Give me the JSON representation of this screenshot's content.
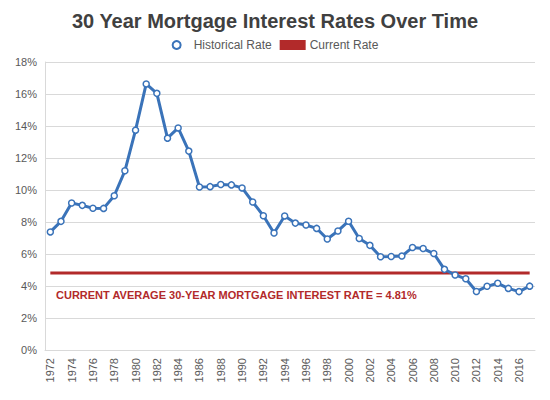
{
  "chart_data": {
    "type": "line",
    "title": "30 Year Mortgage Interest Rates Over Time",
    "categories": [
      "1972",
      null,
      "1974",
      null,
      "1976",
      null,
      "1978",
      null,
      "1980",
      null,
      "1982",
      null,
      "1984",
      null,
      "1986",
      null,
      "1988",
      null,
      "1990",
      null,
      "1992",
      null,
      "1994",
      null,
      "1996",
      null,
      "1998",
      null,
      "2000",
      null,
      "2002",
      null,
      "2004",
      null,
      "2006",
      null,
      "2008",
      null,
      "2010",
      null,
      "2012",
      null,
      "2014",
      null,
      "2016",
      null
    ],
    "series": [
      {
        "name": "Historical Rate",
        "color": "#3a73b9",
        "marker": "circle",
        "line_style": "solid",
        "values": [
          7.38,
          8.04,
          9.19,
          9.04,
          8.86,
          8.85,
          9.64,
          11.2,
          13.74,
          16.63,
          16.04,
          13.24,
          13.88,
          12.43,
          10.19,
          10.21,
          10.34,
          10.32,
          10.13,
          9.25,
          8.39,
          7.31,
          8.38,
          7.93,
          7.81,
          7.6,
          6.94,
          7.44,
          8.05,
          6.97,
          6.54,
          5.83,
          5.84,
          5.87,
          6.41,
          6.34,
          6.03,
          5.04,
          4.69,
          4.45,
          3.66,
          3.98,
          4.17,
          3.85,
          3.65,
          3.99
        ]
      },
      {
        "name": "Current Rate",
        "color": "#b22a2a",
        "marker": "none",
        "line_style": "solid",
        "values": [
          4.81,
          4.81,
          4.81,
          4.81,
          4.81,
          4.81,
          4.81,
          4.81,
          4.81,
          4.81,
          4.81,
          4.81,
          4.81,
          4.81,
          4.81,
          4.81,
          4.81,
          4.81,
          4.81,
          4.81,
          4.81,
          4.81,
          4.81,
          4.81,
          4.81,
          4.81,
          4.81,
          4.81,
          4.81,
          4.81,
          4.81,
          4.81,
          4.81,
          4.81,
          4.81,
          4.81,
          4.81,
          4.81,
          4.81,
          4.81,
          4.81,
          4.81,
          4.81,
          4.81,
          4.81,
          4.81
        ]
      }
    ],
    "annotations": [
      "CURRENT AVERAGE 30-YEAR MORTGAGE INTEREST RATE = 4.81%"
    ],
    "ylim": [
      0,
      18
    ],
    "yticks": [
      {
        "value": 0,
        "label": "0%"
      },
      {
        "value": 2,
        "label": "2%"
      },
      {
        "value": 4,
        "label": "4%"
      },
      {
        "value": 6,
        "label": "6%"
      },
      {
        "value": 8,
        "label": "8%"
      },
      {
        "value": 10,
        "label": "10%"
      },
      {
        "value": 12,
        "label": "12%"
      },
      {
        "value": 14,
        "label": "14%"
      },
      {
        "value": 16,
        "label": "16%"
      },
      {
        "value": 18,
        "label": "18%"
      }
    ],
    "grid": true,
    "legend": "top"
  }
}
